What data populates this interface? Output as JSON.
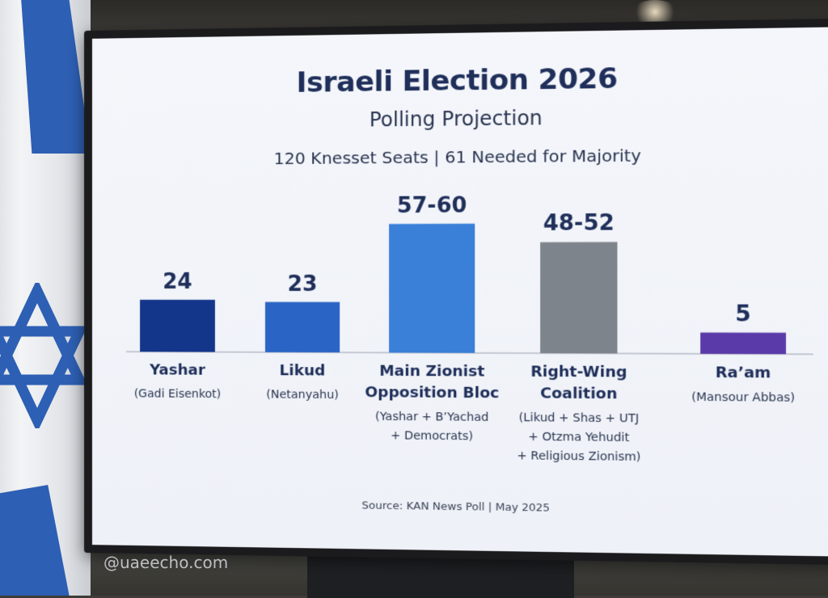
{
  "header": {
    "title": "Israeli Election 2026",
    "subtitle": "Polling Projection",
    "seats_info": "120 Knesset Seats  |  61 Needed for Majority"
  },
  "footer": {
    "source": "Source: KAN News Poll  |  May 2025"
  },
  "watermark": "@uaeecho.com",
  "chart_data": {
    "type": "bar",
    "title": "Israeli Election 2026",
    "subtitle": "Polling Projection",
    "categories": [
      "Yashar",
      "Likud",
      "Main Zionist Opposition Bloc",
      "Right-Wing Coalition",
      "Ra’am"
    ],
    "category_label_lines": [
      [
        "Yashar"
      ],
      [
        "Likud"
      ],
      [
        "Main Zionist",
        "Opposition Bloc"
      ],
      [
        "Right-Wing",
        "Coalition"
      ],
      [
        "Ra’am"
      ]
    ],
    "sub_label_lines": [
      [
        "(Gadi Eisenkot)"
      ],
      [
        "(Netanyahu)"
      ],
      [
        "(Yashar + B’Yachad",
        "+ Democrats)"
      ],
      [
        "(Likud + Shas + UTJ",
        "+ Otzma Yehudit",
        "+ Religious Zionism)"
      ],
      [
        "(Mansour Abbas)"
      ]
    ],
    "values": [
      24,
      23,
      58.5,
      50,
      5
    ],
    "value_labels": [
      "24",
      "23",
      "57-60",
      "48-52",
      "5"
    ],
    "ranges": [
      null,
      null,
      [
        57,
        60
      ],
      [
        48,
        52
      ],
      null
    ],
    "colors": [
      "#14368a",
      "#2a64c4",
      "#3a7fd8",
      "#7e848c",
      "#5a3aa8"
    ],
    "ylim": [
      0,
      70
    ],
    "grid": false,
    "legend": "none"
  }
}
